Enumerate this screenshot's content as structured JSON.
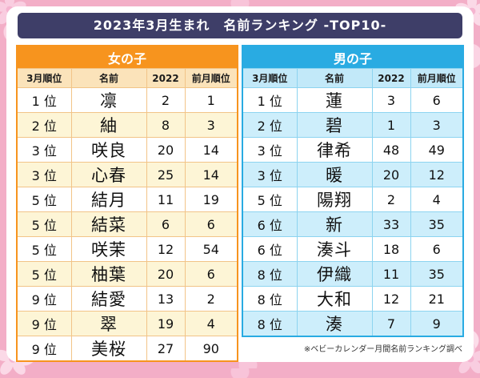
{
  "title": "2023年3月生まれ　名前ランキング -TOP10-",
  "columns": [
    "3月順位",
    "名前",
    "2022",
    "前月順位"
  ],
  "girls": {
    "label": "女の子",
    "rows": [
      {
        "rank": "1 位",
        "name": "凛",
        "y2022": "2",
        "prev": "1"
      },
      {
        "rank": "2 位",
        "name": "紬",
        "y2022": "8",
        "prev": "3"
      },
      {
        "rank": "3 位",
        "name": "咲良",
        "y2022": "20",
        "prev": "14"
      },
      {
        "rank": "3 位",
        "name": "心春",
        "y2022": "25",
        "prev": "14"
      },
      {
        "rank": "5 位",
        "name": "結月",
        "y2022": "11",
        "prev": "19"
      },
      {
        "rank": "5 位",
        "name": "結菜",
        "y2022": "6",
        "prev": "6"
      },
      {
        "rank": "5 位",
        "name": "咲茉",
        "y2022": "12",
        "prev": "54"
      },
      {
        "rank": "5 位",
        "name": "柚葉",
        "y2022": "20",
        "prev": "6"
      },
      {
        "rank": "9 位",
        "name": "結愛",
        "y2022": "13",
        "prev": "2"
      },
      {
        "rank": "9 位",
        "name": "翠",
        "y2022": "19",
        "prev": "4"
      },
      {
        "rank": "9 位",
        "name": "美桜",
        "y2022": "27",
        "prev": "90"
      }
    ]
  },
  "boys": {
    "label": "男の子",
    "rows": [
      {
        "rank": "1 位",
        "name": "蓮",
        "y2022": "3",
        "prev": "6"
      },
      {
        "rank": "2 位",
        "name": "碧",
        "y2022": "1",
        "prev": "3"
      },
      {
        "rank": "3 位",
        "name": "律希",
        "y2022": "48",
        "prev": "49"
      },
      {
        "rank": "3 位",
        "name": "暖",
        "y2022": "20",
        "prev": "12"
      },
      {
        "rank": "5 位",
        "name": "陽翔",
        "y2022": "2",
        "prev": "4"
      },
      {
        "rank": "6 位",
        "name": "新",
        "y2022": "33",
        "prev": "35"
      },
      {
        "rank": "6 位",
        "name": "湊斗",
        "y2022": "18",
        "prev": "6"
      },
      {
        "rank": "8 位",
        "name": "伊織",
        "y2022": "11",
        "prev": "35"
      },
      {
        "rank": "8 位",
        "name": "大和",
        "y2022": "12",
        "prev": "21"
      },
      {
        "rank": "8 位",
        "name": "湊",
        "y2022": "7",
        "prev": "9"
      }
    ]
  },
  "footer_note": "※ベビーカレンダー月間名前ランキング調べ",
  "colors": {
    "title_bar": "#3e3e68",
    "girls_accent": "#f7941e",
    "boys_accent": "#29abe2",
    "girls_alt_row": "#fdf5d6",
    "boys_alt_row": "#cdeefb",
    "background_pink": "#f3aec7"
  }
}
